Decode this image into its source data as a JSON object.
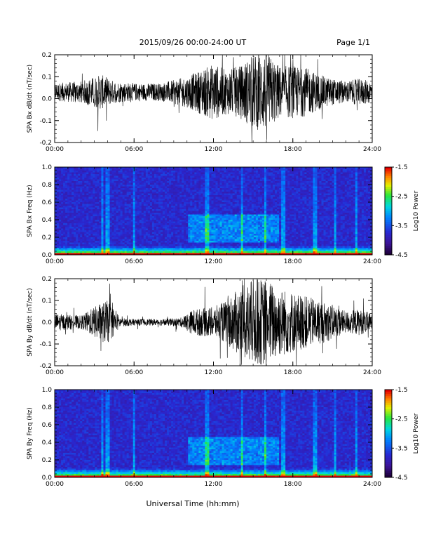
{
  "header": {
    "title": "2015/09/26  00:00-24:00 UT",
    "page": "Page 1/1"
  },
  "xlabel": "Universal Time (hh:mm)",
  "chart_data": [
    {
      "type": "line",
      "ylabel": "SPA Bx dB/dt (nT/sec)",
      "xlim": [
        0,
        24
      ],
      "ylim": [
        -0.2,
        0.2
      ],
      "yticks": [
        "0.2",
        "0.1",
        "0.0",
        "-0.1",
        "-0.2"
      ],
      "xticks": [
        "00:00",
        "06:00",
        "12:00",
        "18:00",
        "24:00"
      ],
      "envelope": {
        "x_hours": [
          0,
          2,
          3.5,
          4.5,
          6,
          8,
          10,
          11,
          12,
          13,
          14,
          15,
          16,
          17,
          18,
          19,
          20,
          21,
          22,
          23,
          24
        ],
        "amplitude": [
          0.04,
          0.05,
          0.08,
          0.05,
          0.04,
          0.04,
          0.07,
          0.1,
          0.13,
          0.1,
          0.12,
          0.17,
          0.18,
          0.12,
          0.12,
          0.11,
          0.08,
          0.06,
          0.05,
          0.06,
          0.05
        ]
      },
      "baseline": 0.03
    },
    {
      "type": "heatmap",
      "ylabel": "SPA Bx Freq (Hz)",
      "xlim": [
        0,
        24
      ],
      "ylim": [
        0,
        1.0
      ],
      "yticks": [
        "1.0",
        "0.8",
        "0.6",
        "0.4",
        "0.2",
        "0.0"
      ],
      "xticks": [
        "00:00",
        "06:00",
        "12:00",
        "18:00",
        "24:00"
      ],
      "colorbar": {
        "label": "Log10 Power",
        "ticks": [
          "-1.5",
          "-2.5",
          "-3.5",
          "-4.5"
        ],
        "range": [
          -4.5,
          -1.5
        ]
      }
    },
    {
      "type": "line",
      "ylabel": "SPA By dB/dt (nT/sec)",
      "xlim": [
        0,
        24
      ],
      "ylim": [
        -0.2,
        0.2
      ],
      "yticks": [
        "0.2",
        "0.1",
        "0.0",
        "-0.1",
        "-0.2"
      ],
      "xticks": [
        "00:00",
        "06:00",
        "12:00",
        "18:00",
        "24:00"
      ],
      "envelope": {
        "x_hours": [
          0,
          2,
          3.5,
          4,
          5,
          6,
          8,
          9.5,
          10.5,
          12,
          13,
          14,
          15,
          16,
          17,
          18,
          19,
          20,
          21,
          22,
          23,
          24
        ],
        "amplitude": [
          0.04,
          0.03,
          0.09,
          0.1,
          0.02,
          0.015,
          0.015,
          0.02,
          0.06,
          0.07,
          0.1,
          0.16,
          0.2,
          0.2,
          0.16,
          0.14,
          0.12,
          0.1,
          0.08,
          0.05,
          0.06,
          0.04
        ]
      },
      "baseline": 0.0
    },
    {
      "type": "heatmap",
      "ylabel": "SPA By Freq (Hz)",
      "xlim": [
        0,
        24
      ],
      "ylim": [
        0,
        1.0
      ],
      "yticks": [
        "1.0",
        "0.8",
        "0.6",
        "0.4",
        "0.2",
        "0.0"
      ],
      "xticks": [
        "00:00",
        "06:00",
        "12:00",
        "18:00",
        "24:00"
      ],
      "colorbar": {
        "label": "Log10 Power",
        "ticks": [
          "-1.5",
          "-2.5",
          "-3.5",
          "-4.5"
        ],
        "range": [
          -4.5,
          -1.5
        ]
      }
    }
  ]
}
